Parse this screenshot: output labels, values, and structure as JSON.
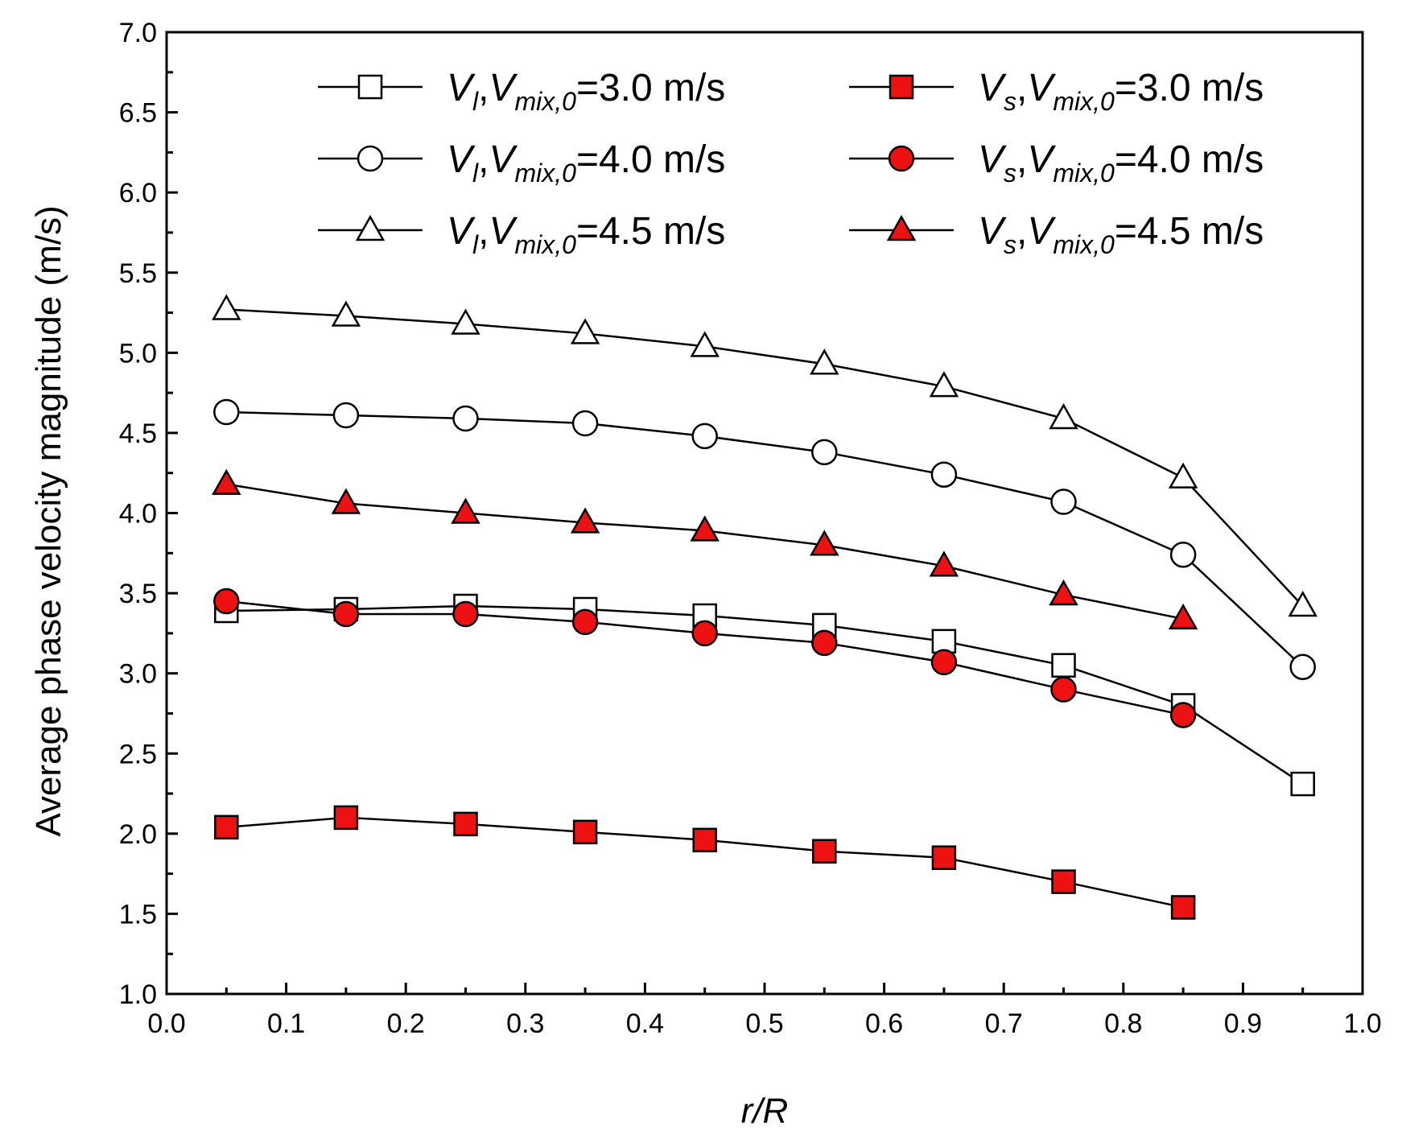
{
  "chart_data": {
    "type": "line",
    "xlabel": "r/R",
    "ylabel": "Average phase velocity magnitude (m/s)",
    "xlim": [
      0.0,
      1.0
    ],
    "ylim": [
      1.0,
      7.0
    ],
    "xticks": [
      "0.0",
      "0.1",
      "0.2",
      "0.3",
      "0.4",
      "0.5",
      "0.6",
      "0.7",
      "0.8",
      "0.9",
      "1.0"
    ],
    "yticks": [
      "1.0",
      "1.5",
      "2.0",
      "2.5",
      "3.0",
      "3.5",
      "4.0",
      "4.5",
      "5.0",
      "5.5",
      "6.0",
      "6.5",
      "7.0"
    ],
    "grid": false,
    "legend_position": "top-right",
    "series": [
      {
        "name": "Vl,Vmix,0=3.0 m/s",
        "marker": "square",
        "filled": false,
        "color": "#000000",
        "x": [
          0.05,
          0.15,
          0.25,
          0.35,
          0.45,
          0.55,
          0.65,
          0.75,
          0.85,
          0.95
        ],
        "y": [
          3.39,
          3.4,
          3.42,
          3.4,
          3.36,
          3.3,
          3.2,
          3.05,
          2.8,
          2.31
        ]
      },
      {
        "name": "Vl,Vmix,0=4.0 m/s",
        "marker": "circle",
        "filled": false,
        "color": "#000000",
        "x": [
          0.05,
          0.15,
          0.25,
          0.35,
          0.45,
          0.55,
          0.65,
          0.75,
          0.85,
          0.95
        ],
        "y": [
          4.63,
          4.61,
          4.59,
          4.56,
          4.48,
          4.38,
          4.24,
          4.07,
          3.74,
          3.04
        ]
      },
      {
        "name": "Vl,Vmix,0=4.5 m/s",
        "marker": "triangle",
        "filled": false,
        "color": "#000000",
        "x": [
          0.05,
          0.15,
          0.25,
          0.35,
          0.45,
          0.55,
          0.65,
          0.75,
          0.85,
          0.95
        ],
        "y": [
          5.27,
          5.23,
          5.18,
          5.12,
          5.04,
          4.93,
          4.79,
          4.59,
          4.22,
          3.42
        ]
      },
      {
        "name": "Vs,Vmix,0=3.0 m/s",
        "marker": "square",
        "filled": true,
        "color": "#ee1111",
        "x": [
          0.05,
          0.15,
          0.25,
          0.35,
          0.45,
          0.55,
          0.65,
          0.75,
          0.85
        ],
        "y": [
          2.04,
          2.1,
          2.06,
          2.01,
          1.96,
          1.89,
          1.85,
          1.7,
          1.54
        ]
      },
      {
        "name": "Vs,Vmix,0=4.0 m/s",
        "marker": "circle",
        "filled": true,
        "color": "#ee1111",
        "x": [
          0.05,
          0.15,
          0.25,
          0.35,
          0.45,
          0.55,
          0.65,
          0.75,
          0.85
        ],
        "y": [
          3.45,
          3.37,
          3.37,
          3.32,
          3.25,
          3.19,
          3.07,
          2.9,
          2.74
        ]
      },
      {
        "name": "Vs,Vmix,0=4.5 m/s",
        "marker": "triangle",
        "filled": true,
        "color": "#ee1111",
        "x": [
          0.05,
          0.15,
          0.25,
          0.35,
          0.45,
          0.55,
          0.65,
          0.75,
          0.85
        ],
        "y": [
          4.18,
          4.06,
          4.0,
          3.94,
          3.89,
          3.8,
          3.67,
          3.49,
          3.34
        ]
      }
    ],
    "legend": [
      {
        "series": 0,
        "sym": "V",
        "sub1": "l",
        "mid": ",V",
        "sub2": "mix,0",
        "tail": "=3.0 m/s"
      },
      {
        "series": 3,
        "sym": "V",
        "sub1": "s",
        "mid": ",V",
        "sub2": "mix,0",
        "tail": "=3.0 m/s"
      },
      {
        "series": 1,
        "sym": "V",
        "sub1": "l",
        "mid": ",V",
        "sub2": "mix,0",
        "tail": "=4.0 m/s"
      },
      {
        "series": 4,
        "sym": "V",
        "sub1": "s",
        "mid": ",V",
        "sub2": "mix,0",
        "tail": "=4.0 m/s"
      },
      {
        "series": 2,
        "sym": "V",
        "sub1": "l",
        "mid": ",V",
        "sub2": "mix,0",
        "tail": "=4.5 m/s"
      },
      {
        "series": 5,
        "sym": "V",
        "sub1": "s",
        "mid": ",V",
        "sub2": "mix,0",
        "tail": "=4.5 m/s"
      }
    ]
  }
}
